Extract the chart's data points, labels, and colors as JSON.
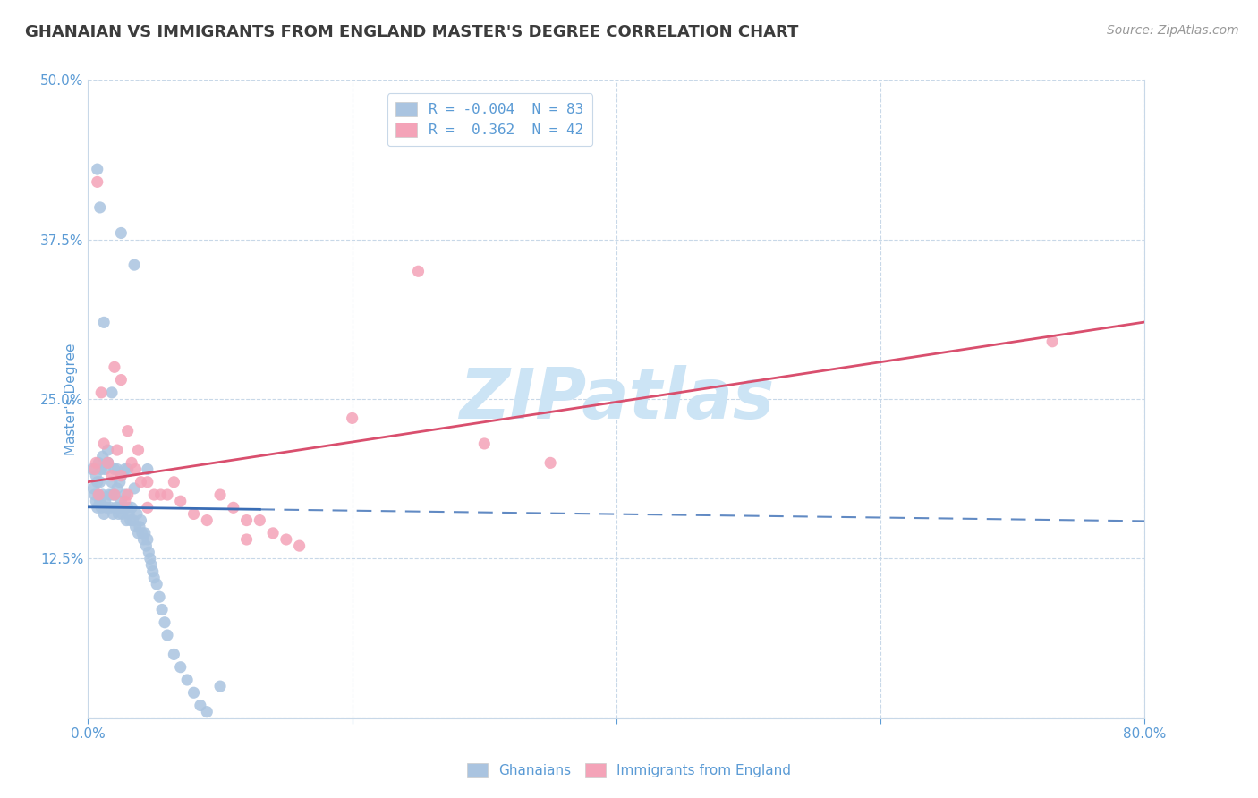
{
  "title": "GHANAIAN VS IMMIGRANTS FROM ENGLAND MASTER'S DEGREE CORRELATION CHART",
  "source": "Source: ZipAtlas.com",
  "ylabel": "Master's Degree",
  "xlim": [
    0.0,
    0.8
  ],
  "ylim": [
    0.0,
    0.5
  ],
  "xticks": [
    0.0,
    0.2,
    0.4,
    0.6,
    0.8
  ],
  "xticklabels": [
    "0.0%",
    "",
    "",
    "",
    "80.0%"
  ],
  "yticks": [
    0.0,
    0.125,
    0.25,
    0.375,
    0.5
  ],
  "yticklabels": [
    "",
    "12.5%",
    "25.0%",
    "37.5%",
    "50.0%"
  ],
  "scatter1_color": "#aac4e0",
  "scatter2_color": "#f4a3b8",
  "line1_color": "#3a6db5",
  "line2_color": "#d94f6e",
  "watermark": "ZIPatlas",
  "watermark_color": "#cce4f5",
  "title_color": "#3c3c3c",
  "tick_label_color": "#5b9bd5",
  "grid_color": "#c8d8e8",
  "background_color": "#ffffff",
  "R1": -0.004,
  "N1": 83,
  "R2": 0.362,
  "N2": 42,
  "legend_label1": "Ghanaians",
  "legend_label2": "Immigrants from England",
  "legend1_color": "#aac4e0",
  "legend2_color": "#f4a3b8",
  "legend_text_color": "#5b9bd5",
  "blue_x": [
    0.003,
    0.004,
    0.005,
    0.006,
    0.006,
    0.007,
    0.007,
    0.008,
    0.008,
    0.009,
    0.009,
    0.01,
    0.01,
    0.011,
    0.011,
    0.012,
    0.013,
    0.013,
    0.014,
    0.015,
    0.015,
    0.016,
    0.017,
    0.018,
    0.018,
    0.019,
    0.02,
    0.02,
    0.021,
    0.022,
    0.022,
    0.023,
    0.024,
    0.024,
    0.025,
    0.025,
    0.026,
    0.027,
    0.028,
    0.028,
    0.029,
    0.03,
    0.03,
    0.031,
    0.032,
    0.033,
    0.034,
    0.035,
    0.036,
    0.037,
    0.038,
    0.039,
    0.04,
    0.041,
    0.042,
    0.043,
    0.044,
    0.045,
    0.046,
    0.047,
    0.048,
    0.049,
    0.05,
    0.052,
    0.054,
    0.056,
    0.058,
    0.06,
    0.065,
    0.07,
    0.075,
    0.08,
    0.085,
    0.09,
    0.1,
    0.012,
    0.018,
    0.025,
    0.035,
    0.045,
    0.007,
    0.009,
    0.015
  ],
  "blue_y": [
    0.195,
    0.18,
    0.175,
    0.19,
    0.17,
    0.165,
    0.185,
    0.175,
    0.2,
    0.17,
    0.185,
    0.165,
    0.195,
    0.175,
    0.205,
    0.16,
    0.17,
    0.195,
    0.165,
    0.2,
    0.21,
    0.175,
    0.165,
    0.185,
    0.175,
    0.16,
    0.195,
    0.175,
    0.165,
    0.18,
    0.195,
    0.16,
    0.165,
    0.185,
    0.19,
    0.17,
    0.16,
    0.165,
    0.175,
    0.195,
    0.155,
    0.165,
    0.195,
    0.16,
    0.155,
    0.165,
    0.155,
    0.18,
    0.15,
    0.16,
    0.145,
    0.15,
    0.155,
    0.145,
    0.14,
    0.145,
    0.135,
    0.14,
    0.13,
    0.125,
    0.12,
    0.115,
    0.11,
    0.105,
    0.095,
    0.085,
    0.075,
    0.065,
    0.05,
    0.04,
    0.03,
    0.02,
    0.01,
    0.005,
    0.025,
    0.31,
    0.255,
    0.38,
    0.355,
    0.195,
    0.43,
    0.4,
    0.2
  ],
  "pink_x": [
    0.005,
    0.006,
    0.008,
    0.01,
    0.012,
    0.015,
    0.018,
    0.02,
    0.022,
    0.025,
    0.028,
    0.03,
    0.033,
    0.036,
    0.04,
    0.045,
    0.05,
    0.055,
    0.06,
    0.065,
    0.07,
    0.08,
    0.09,
    0.1,
    0.11,
    0.12,
    0.13,
    0.14,
    0.15,
    0.16,
    0.02,
    0.025,
    0.03,
    0.038,
    0.045,
    0.12,
    0.2,
    0.25,
    0.3,
    0.35,
    0.73,
    0.007
  ],
  "pink_y": [
    0.195,
    0.2,
    0.175,
    0.255,
    0.215,
    0.2,
    0.19,
    0.175,
    0.21,
    0.19,
    0.17,
    0.175,
    0.2,
    0.195,
    0.185,
    0.185,
    0.175,
    0.175,
    0.175,
    0.185,
    0.17,
    0.16,
    0.155,
    0.175,
    0.165,
    0.155,
    0.155,
    0.145,
    0.14,
    0.135,
    0.275,
    0.265,
    0.225,
    0.21,
    0.165,
    0.14,
    0.235,
    0.35,
    0.215,
    0.2,
    0.295,
    0.42
  ],
  "line1_x0": 0.0,
  "line1_x_solid_end": 0.13,
  "line1_x1": 0.8,
  "line2_x0": 0.0,
  "line2_x1": 0.8
}
